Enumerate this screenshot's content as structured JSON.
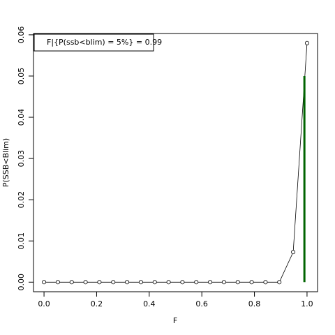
{
  "chart_data": {
    "type": "line",
    "x_label": "F",
    "y_label": "P(SSB<Blim)",
    "x": [
      0,
      0.0526,
      0.1053,
      0.1579,
      0.2105,
      0.2632,
      0.3158,
      0.3684,
      0.4211,
      0.4737,
      0.5263,
      0.5789,
      0.6316,
      0.6842,
      0.7368,
      0.7895,
      0.8421,
      0.8947,
      0.9474,
      1.0
    ],
    "series": [
      {
        "color": "#000000",
        "values": [
          0,
          0,
          0,
          0,
          0,
          0,
          0,
          0,
          0,
          0,
          0,
          0,
          0,
          0,
          0,
          0,
          0,
          0,
          0.0073,
          0.058
        ]
      }
    ],
    "reference_line": {
      "x": 0.99,
      "y": [
        0,
        0.05
      ],
      "color": "#006400"
    },
    "legend_text": "F|{P(ssb<blim) = 5%} =  0.99",
    "legend_position": "top-left",
    "xlim": [
      -0.04,
      1.04
    ],
    "ylim": [
      -0.00232,
      0.06032
    ],
    "xticks": [
      {
        "value": 0,
        "label": "0.0"
      },
      0.2,
      0.4,
      0.6,
      0.8,
      {
        "value": 1,
        "label": "1.0"
      }
    ],
    "yticks": [
      {
        "value": 0,
        "label": "0.00"
      },
      {
        "value": 0.01,
        "label": "0.01"
      },
      {
        "value": 0.02,
        "label": "0.02"
      },
      {
        "value": 0.03,
        "label": "0.03"
      },
      {
        "value": 0.04,
        "label": "0.04"
      },
      {
        "value": 0.05,
        "label": "0.05"
      },
      {
        "value": 0.06,
        "label": "0.06"
      }
    ]
  }
}
